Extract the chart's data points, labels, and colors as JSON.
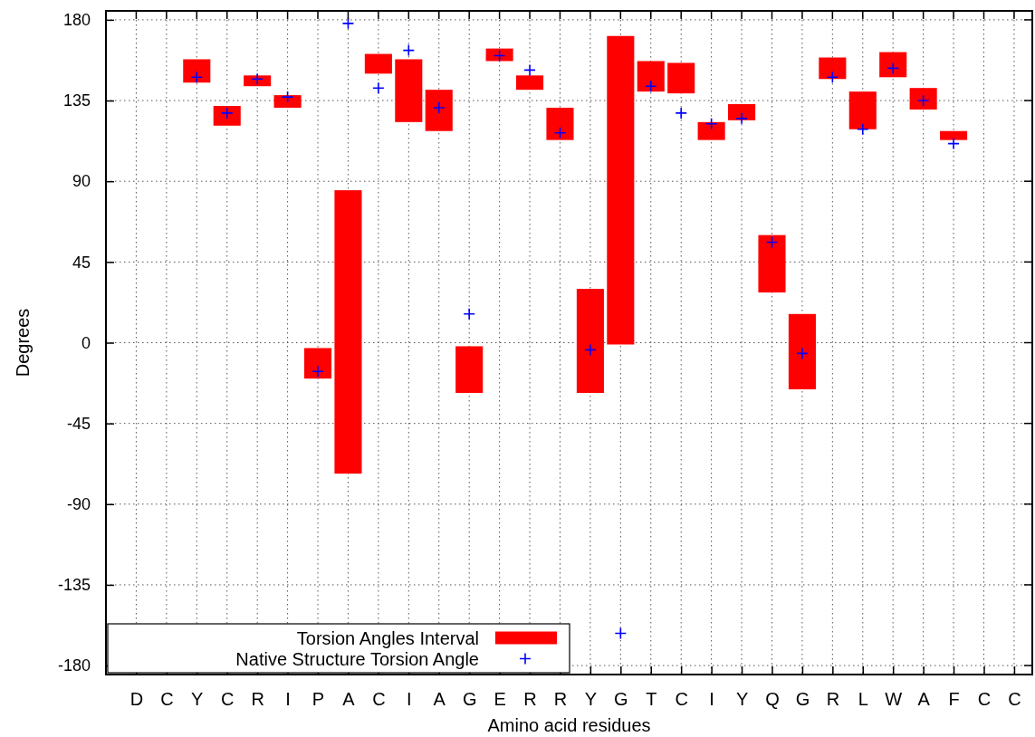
{
  "chart_data": {
    "type": "bar",
    "xlabel": "Amino acid residues",
    "ylabel": "Degrees",
    "categories": [
      "D",
      "C",
      "Y",
      "C",
      "R",
      "I",
      "P",
      "A",
      "C",
      "I",
      "A",
      "G",
      "E",
      "R",
      "R",
      "Y",
      "G",
      "T",
      "C",
      "I",
      "Y",
      "Q",
      "G",
      "R",
      "L",
      "W",
      "A",
      "F",
      "C",
      "C"
    ],
    "ylim": [
      -185,
      185
    ],
    "yticks": [
      -180,
      -135,
      -90,
      -45,
      0,
      45,
      90,
      135,
      180
    ],
    "grid": true,
    "legend": "bottom left",
    "series": [
      {
        "type": "bar",
        "name": "Torsion Angles Interval",
        "color": "#ff0000",
        "base": [
          null,
          null,
          145,
          121,
          143,
          131,
          -20,
          -73,
          150,
          123,
          118,
          -28,
          157,
          141,
          113,
          -28,
          -1,
          140,
          139,
          113,
          124,
          28,
          -26,
          147,
          119,
          148,
          130,
          113,
          null,
          null
        ],
        "values": [
          null,
          null,
          13,
          11,
          6,
          7,
          17,
          158,
          11,
          35,
          23,
          26,
          7,
          8,
          18,
          58,
          172,
          17,
          17,
          10,
          9,
          32,
          42,
          12,
          21,
          14,
          12,
          5,
          null,
          null
        ]
      },
      {
        "type": "scatter",
        "name": "Native Structure Torsion Angle",
        "color": "#0000ff",
        "marker": "cross",
        "values": [
          null,
          null,
          148,
          128,
          147,
          137,
          -16,
          178,
          142,
          163,
          131,
          16,
          160,
          152,
          117,
          -4,
          -162,
          143,
          128,
          122,
          125,
          56,
          -6,
          148,
          119,
          153,
          135,
          111,
          null,
          null
        ]
      }
    ]
  }
}
